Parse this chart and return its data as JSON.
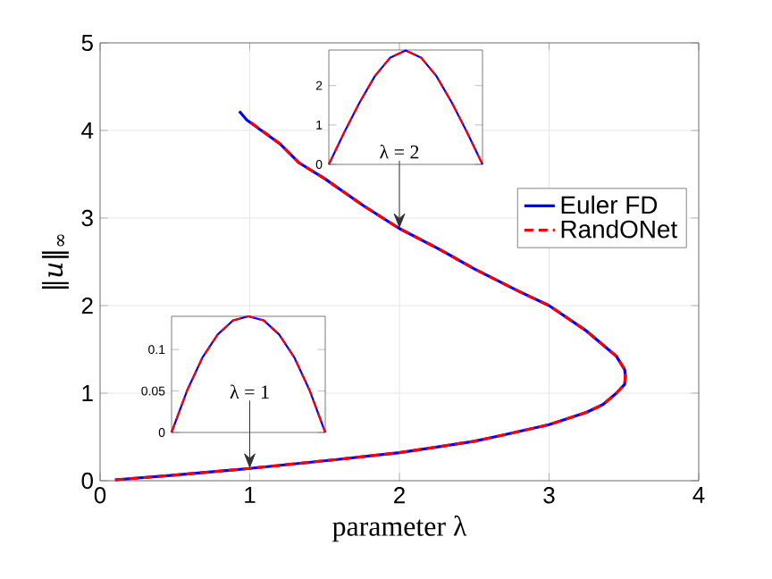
{
  "chart_data": [
    {
      "type": "line",
      "xlabel": "parameter λ",
      "ylabel": "‖*u*‖$_{∞}$",
      "xlim": [
        0,
        4
      ],
      "ylim": [
        0,
        5
      ],
      "xticks": [
        0,
        1,
        2,
        3,
        4
      ],
      "yticks": [
        0,
        1,
        2,
        3,
        4,
        5
      ],
      "grid": true,
      "legend": "right",
      "annotations": [
        {
          "text": "λ = 1",
          "x": 1,
          "y": 0.14
        },
        {
          "text": "λ = 2",
          "x": 2,
          "y": 2.88
        }
      ],
      "series": [
        {
          "name": "Euler FD",
          "color": "#0000ff",
          "line_style": "solid",
          "x": [
            0.1,
            0.47,
            1,
            1.57,
            2,
            2.5,
            2.69,
            3,
            3.25,
            3.36,
            3.45,
            3.505,
            3.51,
            3.505,
            3.45,
            3.25,
            3,
            2.79,
            2.5,
            2.26,
            2,
            1.76,
            1.5,
            1.33,
            1.2,
            0.98,
            0.93
          ],
          "values": [
            0.01,
            0.06,
            0.14,
            0.24,
            0.32,
            0.45,
            0.52,
            0.64,
            0.78,
            0.87,
            1.0,
            1.1,
            1.19,
            1.27,
            1.42,
            1.71,
            2.0,
            2.17,
            2.42,
            2.65,
            2.88,
            3.14,
            3.45,
            3.63,
            3.85,
            4.12,
            4.22
          ]
        },
        {
          "name": "RandONet",
          "color": "#ff0000",
          "line_style": "dashed",
          "x": [
            0.1,
            0.47,
            1,
            1.57,
            2,
            2.5,
            2.69,
            3,
            3.25,
            3.36,
            3.45,
            3.505,
            3.51,
            3.505,
            3.45,
            3.25,
            3,
            2.79,
            2.5,
            2.26,
            2,
            1.76,
            1.5,
            1.33,
            1.2,
            1.0
          ],
          "values": [
            0.01,
            0.06,
            0.14,
            0.24,
            0.32,
            0.45,
            0.52,
            0.64,
            0.78,
            0.87,
            1.0,
            1.1,
            1.19,
            1.27,
            1.42,
            1.71,
            2.0,
            2.17,
            2.42,
            2.65,
            2.88,
            3.14,
            3.45,
            3.63,
            3.85,
            4.1
          ]
        }
      ]
    },
    {
      "type": "line",
      "categories": [
        null,
        null,
        null,
        null,
        null,
        null,
        null,
        null,
        null,
        null,
        null
      ],
      "ylim": [
        0,
        2.9
      ],
      "yticks": [
        0,
        1,
        2
      ],
      "tick_labels": "y",
      "series": [
        {
          "color": "#0000ff",
          "line_style": "solid",
          "values": [
            0,
            0.81,
            1.57,
            2.24,
            2.71,
            2.89,
            2.71,
            2.24,
            1.57,
            0.81,
            0
          ]
        },
        {
          "color": "#ff0000",
          "line_style": "dashed",
          "values": [
            0,
            0.81,
            1.57,
            2.24,
            2.71,
            2.89,
            2.71,
            2.24,
            1.57,
            0.81,
            0
          ]
        }
      ]
    },
    {
      "type": "line",
      "categories": [
        null,
        null,
        null,
        null,
        null,
        null,
        null,
        null,
        null,
        null,
        null
      ],
      "ylim": [
        0,
        0.14
      ],
      "yticks": [
        0,
        0.05,
        0.1
      ],
      "tick_labels": "y",
      "series": [
        {
          "color": "#0000ff",
          "line_style": "solid",
          "values": [
            0,
            0.05,
            0.09,
            0.118,
            0.135,
            0.14,
            0.135,
            0.118,
            0.09,
            0.05,
            0
          ]
        },
        {
          "color": "#ff0000",
          "line_style": "dashed",
          "values": [
            0,
            0.05,
            0.09,
            0.118,
            0.135,
            0.14,
            0.135,
            0.118,
            0.09,
            0.05,
            0
          ]
        }
      ]
    }
  ]
}
